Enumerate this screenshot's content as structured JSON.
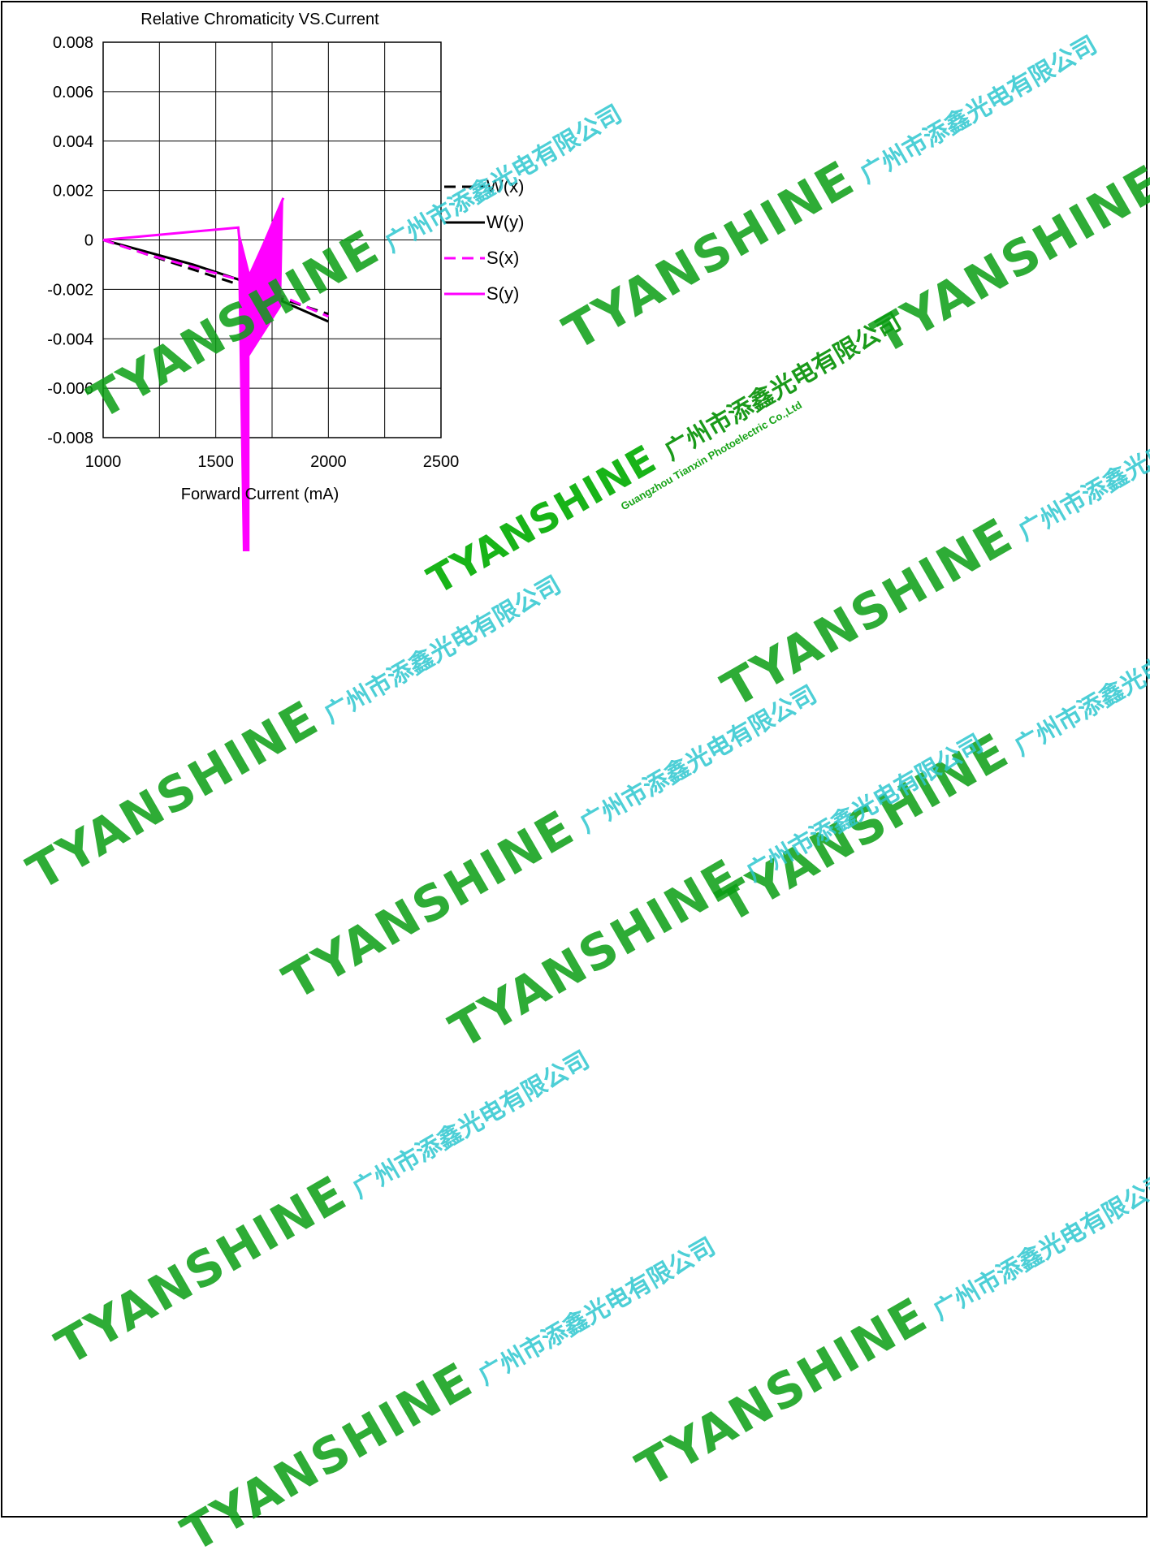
{
  "chart_data": {
    "type": "line",
    "title": "Relative Chromaticity VS.Current",
    "xlabel": "Forward Current (mA)",
    "ylabel": "",
    "xlim": [
      1000,
      2500
    ],
    "ylim": [
      -0.008,
      0.008
    ],
    "x_ticks": [
      "1000",
      "1500",
      "2000",
      "2500"
    ],
    "y_ticks": [
      "0.008",
      "0.006",
      "0.004",
      "0.002",
      "0",
      "-0.002",
      "-0.004",
      "-0.006",
      "-0.008"
    ],
    "x_tick_values": [
      1000,
      1500,
      2000,
      2500
    ],
    "y_tick_values": [
      0.008,
      0.006,
      0.004,
      0.002,
      0,
      -0.002,
      -0.004,
      -0.006,
      -0.008
    ],
    "grid": true,
    "legend_position": "right",
    "series": [
      {
        "name": "W(x)",
        "color": "#000000",
        "dash": "dashed",
        "x": [
          1000,
          1200,
          1400,
          1600,
          1800,
          2000
        ],
        "y": [
          0,
          -0.0006,
          -0.0012,
          -0.0018,
          -0.0024,
          -0.003
        ]
      },
      {
        "name": "W(y)",
        "color": "#000000",
        "dash": "solid",
        "x": [
          1000,
          1200,
          1400,
          1600,
          1800,
          2000
        ],
        "y": [
          0,
          -0.0005,
          -0.001,
          -0.0016,
          -0.0025,
          -0.0033
        ]
      },
      {
        "name": "S(x)",
        "color": "#ff00ff",
        "dash": "dashed",
        "x": [
          1000,
          1200,
          1400,
          1600,
          1800,
          2000
        ],
        "y": [
          0,
          -0.0006,
          -0.0011,
          -0.0016,
          -0.0023,
          -0.0031
        ]
      },
      {
        "name": "S(y)",
        "color": "#ff00ff",
        "dash": "solid",
        "x": [
          1000,
          1600,
          1620,
          1650,
          1800
        ],
        "y": [
          0,
          0.0005,
          -0.0015,
          -0.0015,
          0.0017
        ]
      }
    ]
  },
  "watermark": {
    "brand": "TYANSHINE",
    "company_cn": "广州市添鑫光电有限公司",
    "company_en": "Guangzhou Tianxin Photoelectric Co.,Ltd"
  }
}
